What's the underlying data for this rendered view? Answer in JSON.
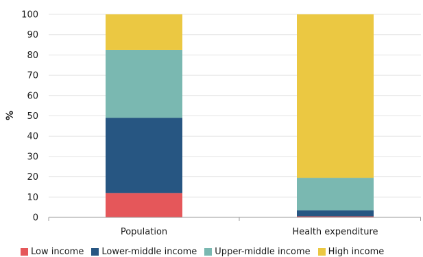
{
  "chart_data": {
    "type": "bar",
    "stacked": true,
    "categories": [
      "Population",
      "Health expenditure"
    ],
    "ylabel": "%",
    "ylim": [
      0,
      100
    ],
    "yticks": [
      "0",
      "10",
      "20",
      "30",
      "40",
      "50",
      "60",
      "70",
      "80",
      "90",
      "100"
    ],
    "grid": true,
    "legend_position": "bottom",
    "series": [
      {
        "name": "Low income",
        "color": "#E5575A",
        "values": [
          12,
          0.5
        ]
      },
      {
        "name": "Lower-middle income",
        "color": "#275682",
        "values": [
          37,
          3
        ]
      },
      {
        "name": "Upper-middle income",
        "color": "#7AB8B1",
        "values": [
          33.5,
          16
        ]
      },
      {
        "name": "High income",
        "color": "#EBC842",
        "values": [
          17.5,
          80.5
        ]
      }
    ]
  }
}
